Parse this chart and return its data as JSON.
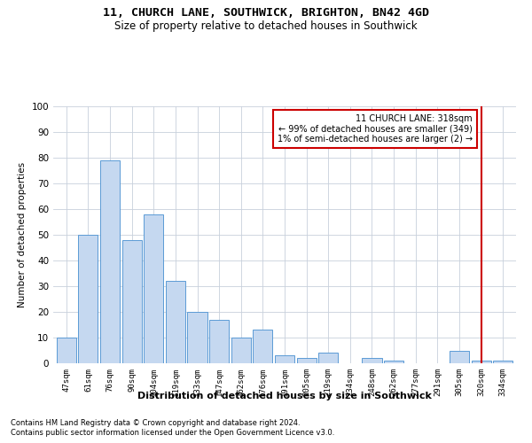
{
  "title": "11, CHURCH LANE, SOUTHWICK, BRIGHTON, BN42 4GD",
  "subtitle": "Size of property relative to detached houses in Southwick",
  "xlabel": "Distribution of detached houses by size in Southwick",
  "ylabel": "Number of detached properties",
  "categories": [
    "47sqm",
    "61sqm",
    "76sqm",
    "90sqm",
    "104sqm",
    "119sqm",
    "133sqm",
    "147sqm",
    "162sqm",
    "176sqm",
    "191sqm",
    "205sqm",
    "219sqm",
    "234sqm",
    "248sqm",
    "262sqm",
    "277sqm",
    "291sqm",
    "305sqm",
    "320sqm",
    "334sqm"
  ],
  "values": [
    10,
    50,
    79,
    48,
    58,
    32,
    20,
    17,
    10,
    13,
    3,
    2,
    4,
    0,
    2,
    1,
    0,
    0,
    5,
    1,
    1
  ],
  "bar_color": "#c5d8f0",
  "bar_edge_color": "#5b9bd5",
  "property_line_color": "#cc0000",
  "annotation_text": "11 CHURCH LANE: 318sqm\n← 99% of detached houses are smaller (349)\n1% of semi-detached houses are larger (2) →",
  "annotation_box_color": "#cc0000",
  "ylim": [
    0,
    100
  ],
  "yticks": [
    0,
    10,
    20,
    30,
    40,
    50,
    60,
    70,
    80,
    90,
    100
  ],
  "footer_line1": "Contains HM Land Registry data © Crown copyright and database right 2024.",
  "footer_line2": "Contains public sector information licensed under the Open Government Licence v3.0.",
  "bg_color": "#ffffff",
  "grid_color": "#c8d0dc",
  "line_x_index": 19
}
